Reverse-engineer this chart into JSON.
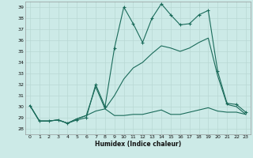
{
  "xlabel": "Humidex (Indice chaleur)",
  "bg_color": "#cceae7",
  "line_color": "#1a6b5a",
  "grid_color": "#b8d8d4",
  "xlim": [
    -0.5,
    23.5
  ],
  "ylim": [
    27.5,
    39.5
  ],
  "xticks": [
    0,
    1,
    2,
    3,
    4,
    5,
    6,
    7,
    8,
    9,
    10,
    11,
    12,
    13,
    14,
    15,
    16,
    17,
    18,
    19,
    20,
    21,
    22,
    23
  ],
  "yticks": [
    28,
    29,
    30,
    31,
    32,
    33,
    34,
    35,
    36,
    37,
    38,
    39
  ],
  "series": [
    {
      "x": [
        0,
        1,
        2,
        3,
        4,
        5,
        6,
        7,
        8,
        9,
        10,
        11,
        12,
        13,
        14,
        15,
        16,
        17,
        18,
        19,
        20,
        21,
        22,
        23
      ],
      "y": [
        30.1,
        28.7,
        28.7,
        28.8,
        28.5,
        28.8,
        29.0,
        32.0,
        30.0,
        35.3,
        39.0,
        37.5,
        35.8,
        38.0,
        39.3,
        38.3,
        37.4,
        37.5,
        38.3,
        38.7,
        33.2,
        30.3,
        30.2,
        29.5
      ],
      "marker": "+"
    },
    {
      "x": [
        0,
        1,
        2,
        3,
        4,
        5,
        6,
        7,
        8,
        9,
        10,
        11,
        12,
        13,
        14,
        15,
        16,
        17,
        18,
        19,
        20,
        21,
        22,
        23
      ],
      "y": [
        30.1,
        28.7,
        28.7,
        28.8,
        28.5,
        28.9,
        29.2,
        29.6,
        29.8,
        29.2,
        29.2,
        29.3,
        29.3,
        29.5,
        29.7,
        29.3,
        29.3,
        29.5,
        29.7,
        29.9,
        29.6,
        29.5,
        29.5,
        29.3
      ],
      "marker": null
    },
    {
      "x": [
        0,
        1,
        2,
        3,
        4,
        5,
        6,
        7,
        8,
        9,
        10,
        11,
        12,
        13,
        14,
        15,
        16,
        17,
        18,
        19,
        20,
        21,
        22,
        23
      ],
      "y": [
        30.1,
        28.7,
        28.7,
        28.8,
        28.5,
        28.9,
        29.2,
        31.8,
        29.8,
        31.0,
        32.5,
        33.5,
        34.0,
        34.8,
        35.5,
        35.3,
        35.0,
        35.3,
        35.8,
        36.2,
        32.8,
        30.2,
        30.0,
        29.3
      ],
      "marker": null
    }
  ]
}
